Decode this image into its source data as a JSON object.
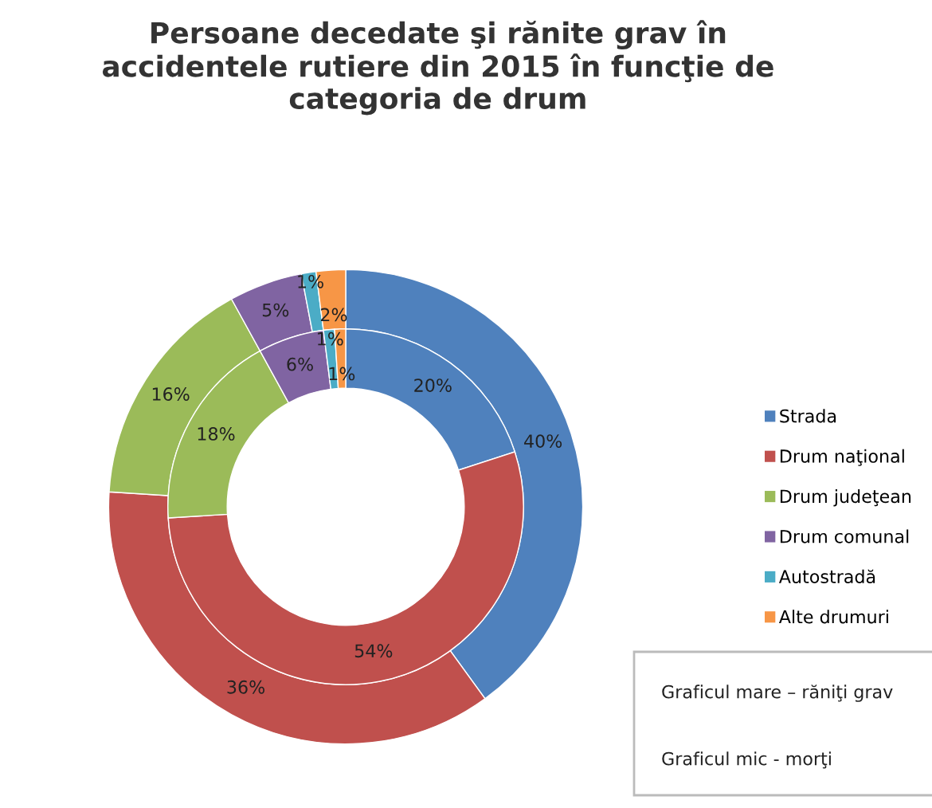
{
  "chart_data": {
    "type": "donut",
    "title": "Persoane decedate şi rănite grav în\naccidentele rutiere din 2015 în funcţie de\ncategoria de drum",
    "categories": [
      "Strada",
      "Drum naţional",
      "Drum judeţean",
      "Drum comunal",
      "Autostradă",
      "Alte drumuri"
    ],
    "colors": [
      "#4f81bd",
      "#c0504d",
      "#9bbb59",
      "#8064a2",
      "#4bacc6",
      "#f79646"
    ],
    "series": [
      {
        "values": [
          40,
          36,
          16,
          5,
          1,
          2
        ],
        "value_labels": [
          "40%",
          "36%",
          "16%",
          "5%",
          "1%",
          "2%"
        ]
      },
      {
        "values": [
          20,
          54,
          18,
          6,
          1,
          1
        ],
        "value_labels": [
          "20%",
          "54%",
          "18%",
          "6%",
          "1%",
          "1%"
        ]
      }
    ],
    "legend": "right",
    "annotations": [
      "Graficul mare – răniţi grav",
      "Graficul mic - morţi"
    ]
  }
}
